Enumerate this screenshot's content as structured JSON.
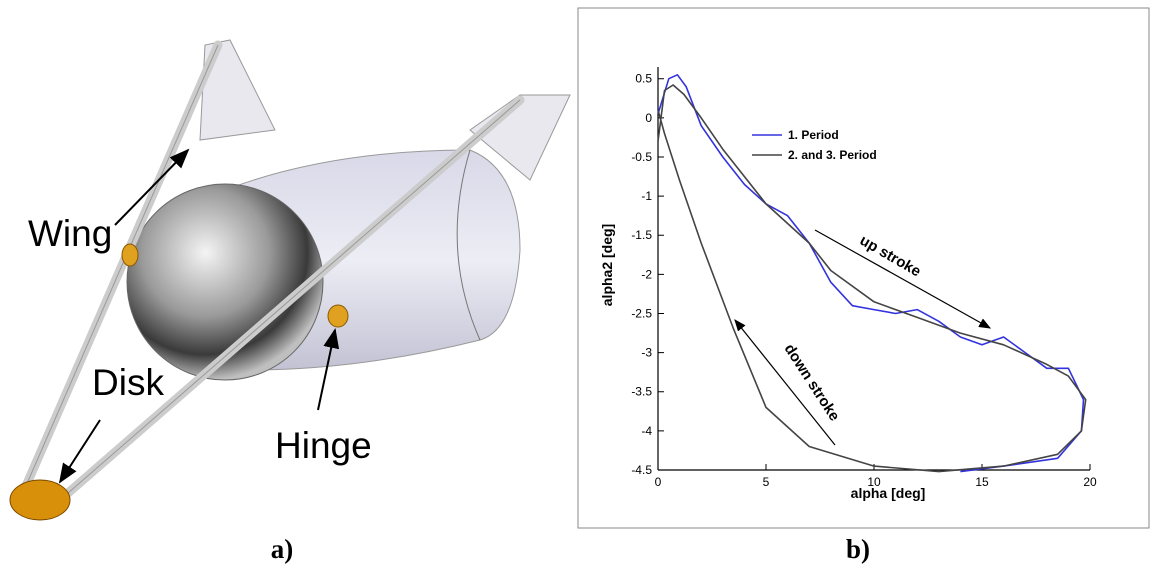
{
  "illustration": {
    "labels": [
      "Wing",
      "Disk",
      "Hinge"
    ],
    "caption": "a)"
  },
  "chart_data": {
    "type": "line",
    "caption": "b)",
    "xlabel": "alpha [deg]",
    "ylabel": "alpha2 [deg]",
    "annotations": [
      "up stroke",
      "down stroke"
    ],
    "xlim": [
      0,
      20
    ],
    "ylim": [
      -4.5,
      0.65
    ],
    "xticks": [
      0,
      5,
      10,
      15,
      20
    ],
    "yticks": [
      0.5,
      0,
      -0.5,
      -1,
      -1.5,
      -2,
      -2.5,
      -3,
      -3.5,
      -4,
      -4.5
    ],
    "legend": "upper center",
    "series": [
      {
        "name": "1. Period",
        "color": "#3333dd",
        "x": [
          0,
          0.5,
          0.9,
          1.3,
          2,
          3,
          4,
          5,
          6,
          7,
          8,
          9,
          10,
          11,
          12,
          13,
          14,
          15,
          16,
          17,
          18,
          19,
          19.7,
          19.6,
          18.5,
          16,
          14
        ],
        "values": [
          0.05,
          0.5,
          0.55,
          0.4,
          -0.1,
          -0.5,
          -0.85,
          -1.1,
          -1.25,
          -1.6,
          -2.1,
          -2.4,
          -2.45,
          -2.5,
          -2.45,
          -2.6,
          -2.8,
          -2.9,
          -2.8,
          -3.0,
          -3.2,
          -3.2,
          -3.6,
          -4.0,
          -4.35,
          -4.45,
          -4.52
        ]
      },
      {
        "name": "2. and 3. Period",
        "color": "#444444",
        "x": [
          0,
          0.3,
          0.7,
          1.2,
          2,
          3,
          5,
          7,
          8,
          10,
          12,
          14,
          16,
          18,
          19,
          19.8,
          19.6,
          18.5,
          16,
          13,
          10,
          7,
          5,
          3.5,
          2,
          1,
          0.3,
          0
        ],
        "values": [
          -0.3,
          0.35,
          0.42,
          0.3,
          0,
          -0.4,
          -1.1,
          -1.6,
          -1.95,
          -2.35,
          -2.55,
          -2.75,
          -2.9,
          -3.15,
          -3.3,
          -3.6,
          -4.0,
          -4.3,
          -4.45,
          -4.52,
          -4.45,
          -4.2,
          -3.7,
          -2.7,
          -1.6,
          -0.8,
          -0.2,
          0.1
        ]
      }
    ]
  }
}
